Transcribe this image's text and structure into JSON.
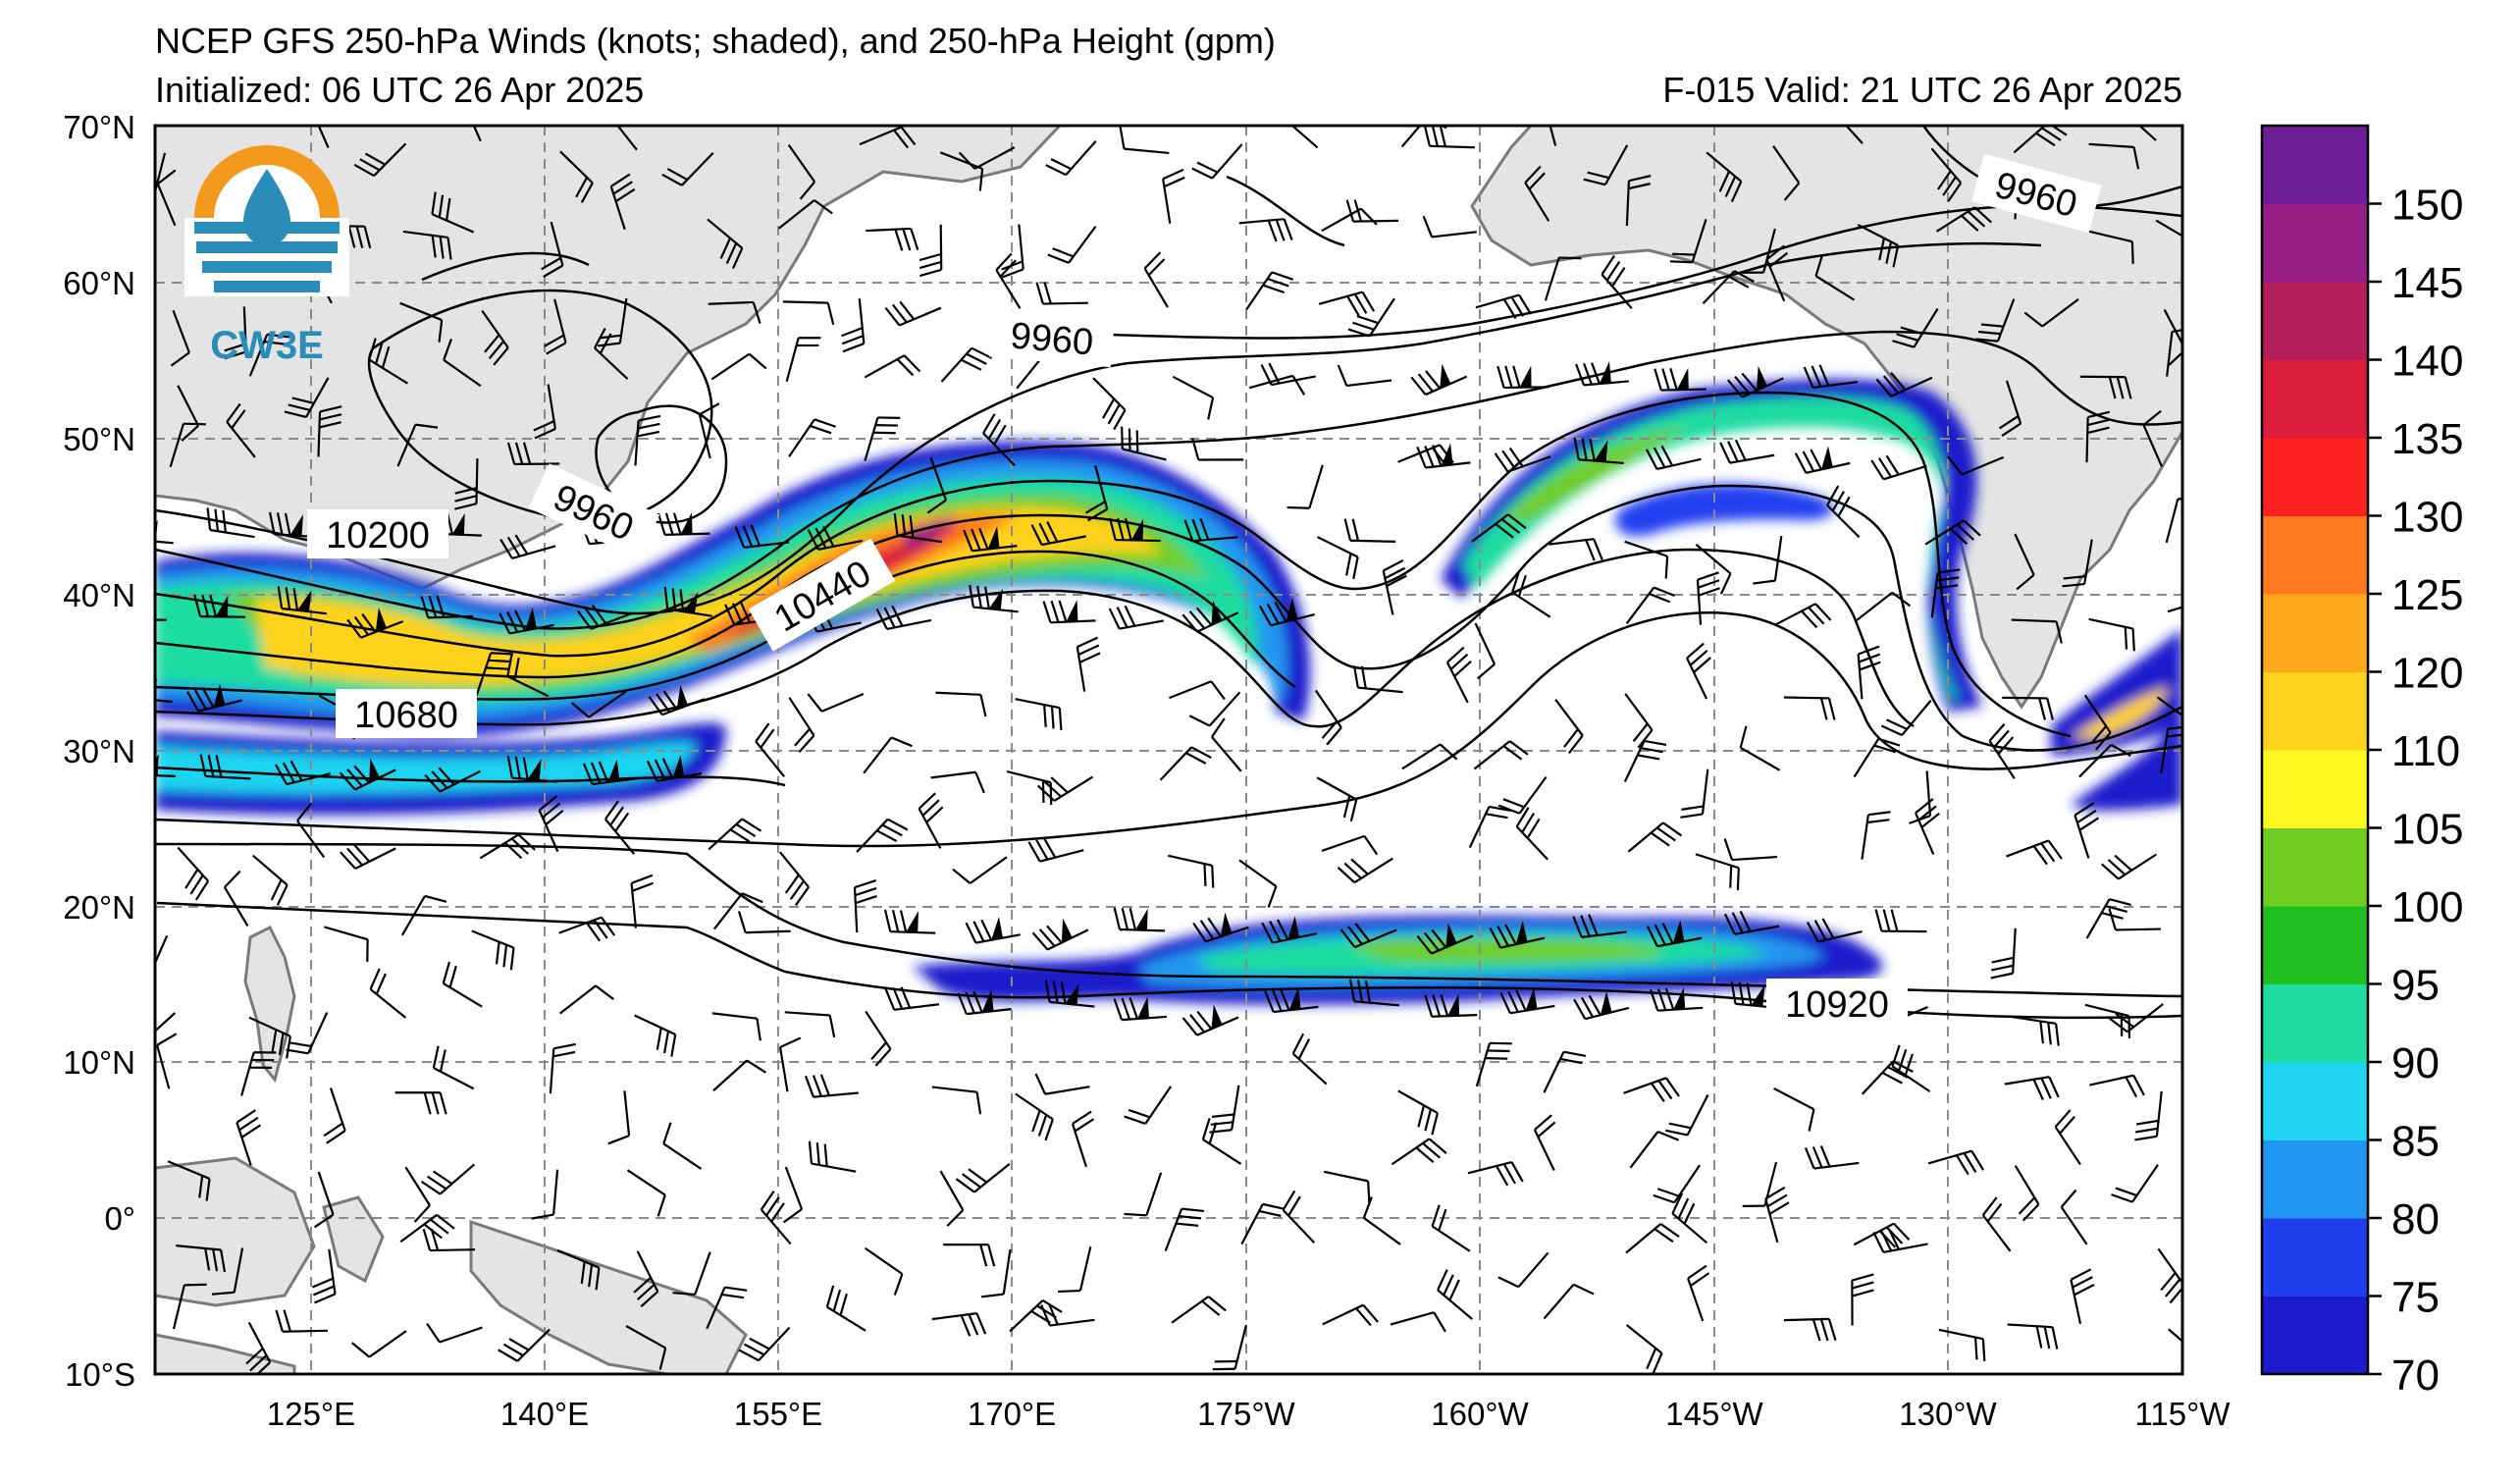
{
  "header": {
    "title": "NCEP GFS 250-hPa Winds (knots; shaded), and 250-hPa Height (gpm)",
    "initialized": "Initialized: 06 UTC 26 Apr 2025",
    "valid": "F-015  Valid: 21 UTC 26 Apr 2025"
  },
  "logo": {
    "text": "CW3E"
  },
  "axes": {
    "lat_labels": [
      "70°N",
      "60°N",
      "50°N",
      "40°N",
      "30°N",
      "20°N",
      "10°N",
      "0°",
      "10°S"
    ],
    "lon_labels": [
      "125°E",
      "140°E",
      "155°E",
      "170°E",
      "175°W",
      "160°W",
      "145°W",
      "130°W",
      "115°W"
    ]
  },
  "colorbar": {
    "labels": [
      "70",
      "75",
      "80",
      "85",
      "90",
      "95",
      "100",
      "105",
      "110",
      "120",
      "125",
      "130",
      "135",
      "140",
      "145",
      "150"
    ],
    "colors": [
      "#1c1ccc",
      "#2040f0",
      "#2096f0",
      "#1ed4f0",
      "#1edca0",
      "#20be20",
      "#70cc20",
      "#fff820",
      "#ffd21e",
      "#ffa81e",
      "#ff7a1e",
      "#ff2020",
      "#dc1e3c",
      "#b41e5a",
      "#961e82",
      "#6e1e96"
    ]
  },
  "contour_labels": [
    "9960",
    "9960",
    "9960",
    "10200",
    "10440",
    "10680",
    "10920"
  ],
  "colors": {
    "land": "#e4e4e4",
    "coast": "#7a7a7a",
    "grid": "#8a8a8a",
    "contour": "#000000"
  }
}
